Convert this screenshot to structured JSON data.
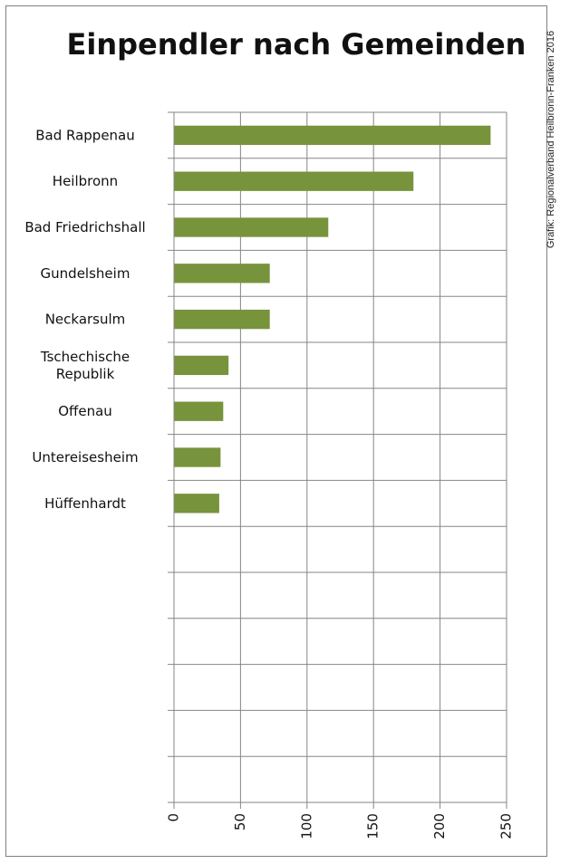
{
  "chart_data": {
    "type": "bar",
    "orientation": "horizontal",
    "title": "Einpendler nach Gemeinden",
    "credit": "Grafik: Regionalverband Heilbronn-Franken 2016",
    "categories": [
      "Bad Rappenau",
      "Heilbronn",
      "Bad Friedrichshall",
      "Gundelsheim",
      "Neckarsulm",
      "Tschechische Republik",
      "Offenau",
      "Untereisesheim",
      "Hüffenhardt",
      "",
      "",
      "",
      "",
      "",
      ""
    ],
    "category_lines": [
      [
        "Bad Rappenau"
      ],
      [
        "Heilbronn"
      ],
      [
        "Bad Friedrichshall"
      ],
      [
        "Gundelsheim"
      ],
      [
        "Neckarsulm"
      ],
      [
        "Tschechische",
        "Republik"
      ],
      [
        "Offenau"
      ],
      [
        "Untereisesheim"
      ],
      [
        "Hüffenhardt"
      ],
      [],
      [],
      [],
      [],
      [],
      []
    ],
    "values": [
      238,
      180,
      116,
      72,
      72,
      41,
      37,
      35,
      34,
      null,
      null,
      null,
      null,
      null,
      null
    ],
    "xlim": [
      0,
      250
    ],
    "xticks": [
      0,
      50,
      100,
      150,
      200,
      250
    ],
    "tick_labels": [
      "0",
      "50",
      "100",
      "150",
      "200",
      "250"
    ],
    "xlabel": "",
    "ylabel": "",
    "grid": true,
    "legend": "none",
    "bar_color": "#77933c",
    "grid_color": "#868686"
  }
}
